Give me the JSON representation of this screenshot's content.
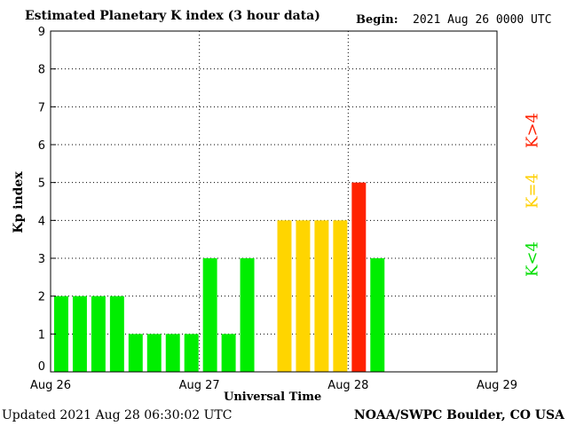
{
  "header": {
    "title": "Estimated Planetary K index (3 hour data)",
    "begin_label": "Begin:",
    "begin_value": "2021 Aug 26 0000 UTC"
  },
  "footer": {
    "updated": "Updated 2021 Aug 28 06:30:02 UTC",
    "source": "NOAA/SWPC Boulder, CO USA"
  },
  "legend": {
    "low": "K<4",
    "mid": "K=4",
    "high": "K>4"
  },
  "colors": {
    "low": "#00ee00",
    "mid": "#ffd500",
    "high": "#ff2200"
  },
  "chart_data": {
    "type": "bar",
    "xlabel": "Universal Time",
    "ylabel": "Kp index",
    "ylim": [
      0,
      9
    ],
    "y_ticks": [
      "0",
      "1",
      "2",
      "3",
      "4",
      "5",
      "6",
      "7",
      "8",
      "9"
    ],
    "x_ticks": [
      "Aug 26",
      "Aug 27",
      "Aug 28",
      "Aug 29"
    ],
    "bins_per_day": 8,
    "grid": true,
    "values": [
      2,
      2,
      2,
      2,
      1,
      1,
      1,
      1,
      3,
      1,
      3,
      null,
      4,
      4,
      4,
      4,
      5,
      3
    ]
  }
}
